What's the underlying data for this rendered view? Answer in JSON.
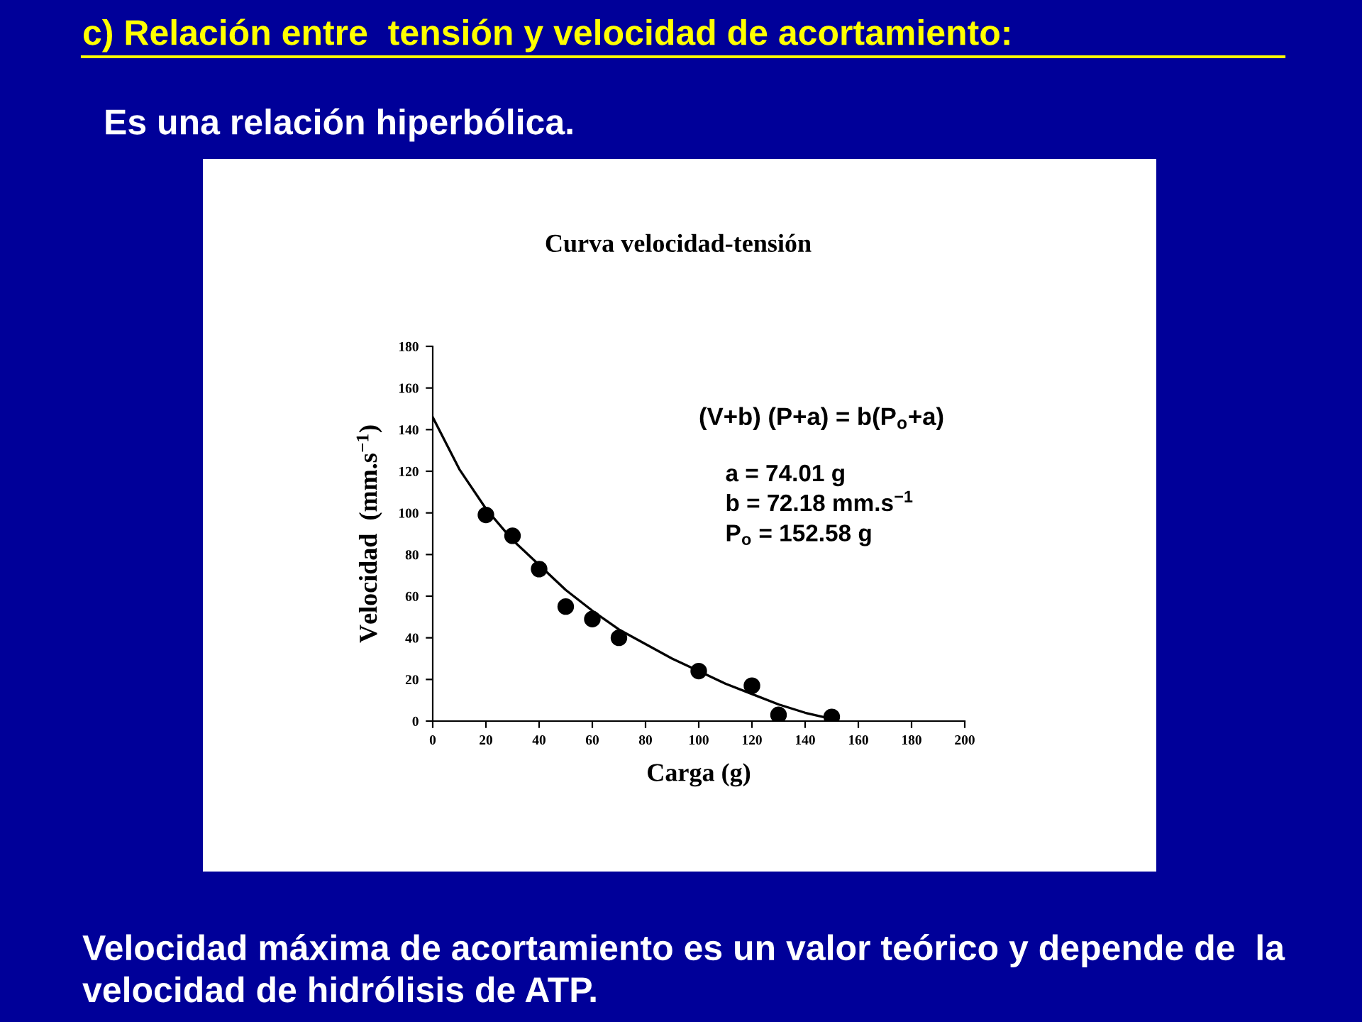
{
  "chart_data": {
    "type": "scatter",
    "title": "c) Relación entre  tensión y velocidad de acortamiento:",
    "subtitle": "Es una relación hiperbólica.",
    "xlabel": "Carga (g)",
    "ylabel": "Velocidad  (mm.s$^{−1}$)",
    "x": [
      20,
      30,
      40,
      50,
      60,
      70,
      100,
      120,
      130,
      150
    ],
    "series": [
      {
        "color": "#000000",
        "marker": "circle",
        "values": [
          99,
          89,
          73,
          55,
          49,
          40,
          24,
          17,
          3,
          2
        ]
      },
      {
        "type": "line",
        "color": "#000000",
        "marker": "none",
        "line_style": "solid",
        "x": [
          0,
          10,
          20,
          30,
          40,
          50,
          60,
          70,
          80,
          90,
          100,
          110,
          120,
          130,
          140,
          150
        ],
        "values": [
          146,
          121,
          102,
          87,
          75,
          63,
          53,
          44,
          37,
          30,
          24,
          18,
          13,
          8,
          4,
          1
        ]
      }
    ],
    "xlim": [
      0,
      200
    ],
    "xticks": [
      0,
      20,
      40,
      60,
      80,
      100,
      120,
      140,
      160,
      180,
      200
    ],
    "ylim": [
      0,
      180
    ],
    "yticks": [
      0,
      20,
      40,
      60,
      80,
      100,
      120,
      140,
      160,
      180
    ],
    "grid": false,
    "legend": false,
    "annotations": [
      "Curva velocidad-tensión",
      "(V+b) (P+a) = b(P$_{o}$+a)",
      "a = 74.01 g",
      "b = 72.18 mm.s$^{−1}$",
      "P$_{o}$ = 152.58 g",
      "Velocidad máxima de acortamiento es un valor teórico y depende de  la velocidad de hidrólisis de ATP."
    ]
  }
}
